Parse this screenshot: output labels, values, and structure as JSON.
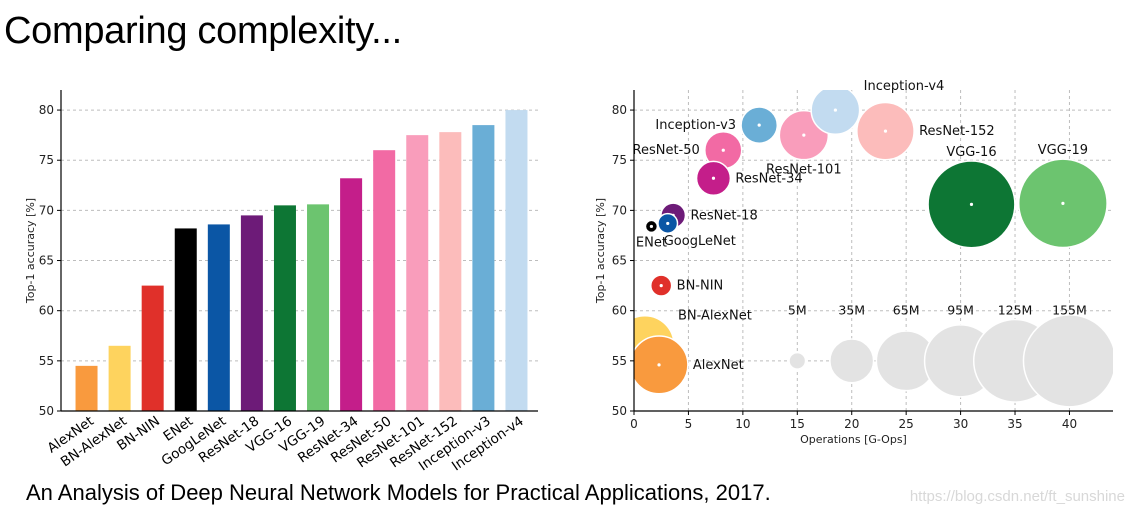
{
  "title": "Comparing complexity...",
  "citation": "An Analysis of Deep Neural Network Models for Practical Applications, 2017.",
  "watermark": "https://blog.csdn.net/ft_sunshine",
  "chart_data": [
    {
      "type": "bar",
      "title": "",
      "xlabel": "",
      "ylabel": "Top-1 accuracy [%]",
      "ylim": [
        50,
        82
      ],
      "yticks": [
        50,
        55,
        60,
        65,
        70,
        75,
        80
      ],
      "grid": true,
      "categories": [
        "AlexNet",
        "BN-AlexNet",
        "BN-NIN",
        "ENet",
        "GoogLeNet",
        "ResNet-18",
        "VGG-16",
        "VGG-19",
        "ResNet-34",
        "ResNet-50",
        "ResNet-101",
        "ResNet-152",
        "Inception-v3",
        "Inception-v4"
      ],
      "values": [
        54.5,
        56.5,
        62.5,
        68.2,
        68.6,
        69.5,
        70.5,
        70.6,
        73.2,
        76.0,
        77.5,
        77.8,
        78.5,
        80.0
      ],
      "colors": [
        "#f99a3e",
        "#fed35e",
        "#e0302a",
        "#000000",
        "#0b56a5",
        "#6d1b78",
        "#0d7634",
        "#6cc46f",
        "#c41e8a",
        "#f26aa4",
        "#f99dbb",
        "#fcbcbb",
        "#6aaed6",
        "#c2dbf0"
      ]
    },
    {
      "type": "scatter",
      "title": "",
      "xlabel": "Operations [G-Ops]",
      "ylabel": "Top-1 accuracy [%]",
      "xlim": [
        0,
        44
      ],
      "ylim": [
        50,
        82
      ],
      "xticks": [
        0,
        5,
        10,
        15,
        20,
        25,
        30,
        35,
        40
      ],
      "yticks": [
        50,
        55,
        60,
        65,
        70,
        75,
        80
      ],
      "grid": true,
      "points": [
        {
          "name": "BN-AlexNet",
          "x": 1.0,
          "y": 56.6,
          "params_m": 62,
          "color": "#fed35e",
          "label_side": "right-up"
        },
        {
          "name": "AlexNet",
          "x": 2.3,
          "y": 54.6,
          "params_m": 61,
          "color": "#f99a3e",
          "label_side": "right"
        },
        {
          "name": "BN-NIN",
          "x": 2.5,
          "y": 62.5,
          "params_m": 8,
          "color": "#e0302a",
          "label_side": "right"
        },
        {
          "name": "ENet",
          "x": 1.6,
          "y": 68.4,
          "params_m": 0.4,
          "color": "#000000",
          "label_side": "below"
        },
        {
          "name": "GoogLeNet",
          "x": 3.1,
          "y": 68.7,
          "params_m": 7,
          "color": "#0b56a5",
          "label_side": "below-right"
        },
        {
          "name": "ResNet-18",
          "x": 3.6,
          "y": 69.5,
          "params_m": 11,
          "color": "#6d1b78",
          "label_side": "right"
        },
        {
          "name": "ResNet-34",
          "x": 7.3,
          "y": 73.2,
          "params_m": 21,
          "color": "#c41e8a",
          "label_side": "right"
        },
        {
          "name": "ResNet-50",
          "x": 8.2,
          "y": 76.0,
          "params_m": 25,
          "color": "#f26aa4",
          "label_side": "left"
        },
        {
          "name": "Inception-v3",
          "x": 11.5,
          "y": 78.5,
          "params_m": 24,
          "color": "#6aaed6",
          "label_side": "left"
        },
        {
          "name": "ResNet-101",
          "x": 15.6,
          "y": 77.5,
          "params_m": 44,
          "color": "#f99dbb",
          "label_side": "below"
        },
        {
          "name": "Inception-v4",
          "x": 18.5,
          "y": 80.0,
          "params_m": 43,
          "color": "#c2dbf0",
          "label_side": "right-up"
        },
        {
          "name": "ResNet-152",
          "x": 23.1,
          "y": 77.9,
          "params_m": 60,
          "color": "#fcbcbb",
          "label_side": "right"
        },
        {
          "name": "VGG-16",
          "x": 31.0,
          "y": 70.6,
          "params_m": 138,
          "color": "#0d7634",
          "label_side": "above"
        },
        {
          "name": "VGG-19",
          "x": 39.4,
          "y": 70.7,
          "params_m": 143,
          "color": "#6cc46f",
          "label_side": "above"
        }
      ],
      "size_legend": [
        {
          "label": "5M",
          "x": 15,
          "y": 55,
          "params_m": 5
        },
        {
          "label": "35M",
          "x": 20,
          "y": 55,
          "params_m": 35
        },
        {
          "label": "65M",
          "x": 25,
          "y": 55,
          "params_m": 65
        },
        {
          "label": "95M",
          "x": 30,
          "y": 55,
          "params_m": 95
        },
        {
          "label": "125M",
          "x": 35,
          "y": 55,
          "params_m": 125
        },
        {
          "label": "155M",
          "x": 40,
          "y": 55,
          "params_m": 155
        }
      ],
      "size_legend_color": "#e3e3e3"
    }
  ]
}
